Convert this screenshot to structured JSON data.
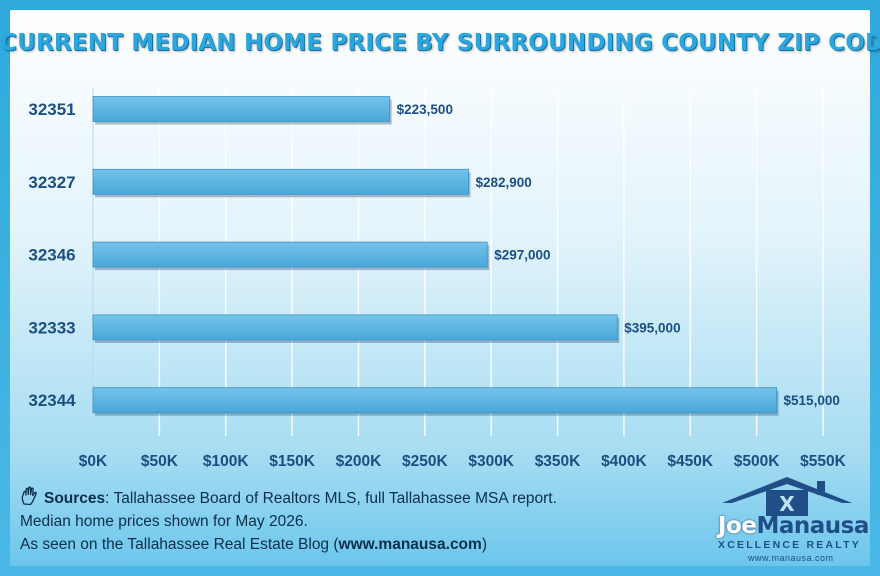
{
  "title": "CURRENT MEDIAN HOME PRICE BY SURROUNDING COUNTY ZIP CODES",
  "chart_data": {
    "type": "bar",
    "orientation": "horizontal",
    "categories": [
      "32351",
      "32327",
      "32346",
      "32333",
      "32344"
    ],
    "values": [
      223500,
      282900,
      297000,
      395000,
      515000
    ],
    "data_labels": [
      "$223,500",
      "$282,900",
      "$297,000",
      "$395,000",
      "$515,000"
    ],
    "xlim": [
      0,
      550000
    ],
    "x_ticks": [
      0,
      50000,
      100000,
      150000,
      200000,
      250000,
      300000,
      350000,
      400000,
      450000,
      500000,
      550000
    ],
    "x_tick_labels": [
      "$0K",
      "$50K",
      "$100K",
      "$150K",
      "$200K",
      "$250K",
      "$300K",
      "$350K",
      "$400K",
      "$450K",
      "$500K",
      "$550K"
    ],
    "grid": true,
    "colors": {
      "bar": "#5ab4e2",
      "bar_edge": "#3c93c4",
      "category_text": "#1b4f82",
      "label_text": "#1b4f82",
      "grid": "#ffffff"
    }
  },
  "sources": {
    "icon": "hand-icon",
    "label": "Sources",
    "line1": ":  Tallahassee Board of Realtors MLS, full Tallahassee MSA report.",
    "line2": "Median home prices shown for May 2026.",
    "line3_prefix": "As seen on the Tallahassee Real Estate Blog (",
    "line3_link": "www.manausa.com",
    "line3_suffix": ")"
  },
  "logo": {
    "first": "Joe",
    "last": "Manausa",
    "sub": "XCELLENCE REALTY",
    "url": "www.manausa.com",
    "icon": "house-logo-icon"
  }
}
